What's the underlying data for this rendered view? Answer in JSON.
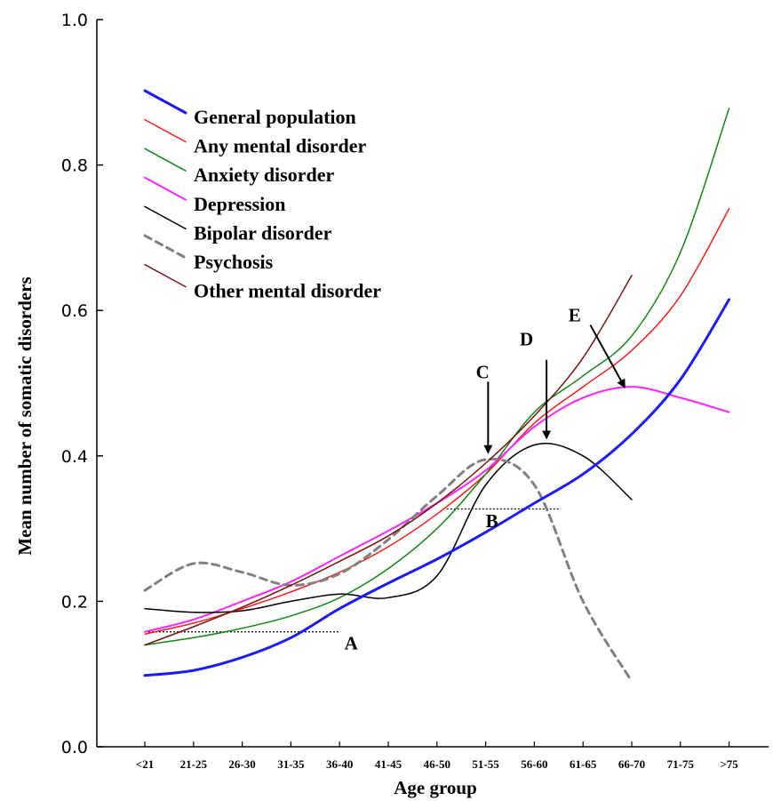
{
  "chart_data": {
    "type": "line",
    "xlabel": "Age group",
    "ylabel": "Mean number of somatic disorders",
    "ylim": [
      0.0,
      1.0
    ],
    "y_ticks": [
      "0.0",
      "0.2",
      "0.4",
      "0.6",
      "0.8",
      "1.0"
    ],
    "categories": [
      "<21",
      "21-25",
      "26-30",
      "31-35",
      "36-40",
      "41-45",
      "46-50",
      "51-55",
      "56-60",
      "61-65",
      "66-70",
      "71-75",
      ">75"
    ],
    "legend_position": "top-left",
    "series": [
      {
        "name": "General population",
        "color": "#1a1aff",
        "dash": "solid",
        "width": 3,
        "values": [
          0.098,
          0.105,
          0.123,
          0.15,
          0.19,
          0.225,
          0.258,
          0.295,
          0.335,
          0.375,
          0.43,
          0.505,
          0.615
        ]
      },
      {
        "name": "Any mental disorder",
        "color": "#ff1a1a",
        "dash": "solid",
        "width": 1.5,
        "values": [
          0.155,
          0.17,
          0.19,
          0.213,
          0.24,
          0.275,
          0.32,
          0.375,
          0.445,
          0.495,
          0.545,
          0.62,
          0.74
        ]
      },
      {
        "name": "Anxiety disorder",
        "color": "#118811",
        "dash": "solid",
        "width": 1.5,
        "values": [
          0.14,
          0.15,
          0.163,
          0.18,
          0.205,
          0.245,
          0.3,
          0.375,
          0.46,
          0.51,
          0.565,
          0.68,
          0.878
        ]
      },
      {
        "name": "Depression",
        "color": "#ff22ff",
        "dash": "solid",
        "width": 2,
        "values": [
          0.158,
          0.175,
          0.2,
          0.227,
          0.262,
          0.297,
          0.335,
          0.38,
          0.44,
          0.48,
          0.495,
          0.48,
          0.46
        ]
      },
      {
        "name": "Bipolar disorder",
        "color": "#000000",
        "dash": "solid",
        "width": 1.5,
        "values": [
          0.19,
          0.185,
          0.187,
          0.2,
          0.21,
          0.205,
          0.235,
          0.36,
          0.415,
          0.4,
          0.34,
          null,
          null
        ]
      },
      {
        "name": "Psychosis",
        "color": "#808080",
        "dash": "8,6",
        "width": 3,
        "values": [
          0.215,
          0.252,
          0.24,
          0.222,
          0.238,
          0.285,
          0.345,
          0.395,
          0.36,
          0.2,
          0.09,
          null,
          null
        ]
      },
      {
        "name": "Other mental disorder",
        "color": "#7a0f0f",
        "dash": "solid",
        "width": 1.5,
        "values": [
          0.14,
          0.165,
          0.192,
          0.222,
          0.255,
          0.29,
          0.335,
          0.39,
          0.455,
          0.535,
          0.648,
          null,
          null
        ]
      }
    ],
    "reference_lines": [
      {
        "x_from": 0,
        "x_to": 4,
        "y": 0.158
      },
      {
        "x_from": 6.2,
        "x_to": 8.5,
        "y": 0.327
      }
    ],
    "annotations": [
      {
        "label": "A",
        "text_x": 4.1,
        "text_y": 0.134,
        "arrow": false
      },
      {
        "label": "B",
        "text_x": 7.0,
        "text_y": 0.302,
        "arrow": false
      },
      {
        "label": "C",
        "text_x": 6.8,
        "text_y": 0.507,
        "arrow": true,
        "arrow_from": [
          7.05,
          0.502
        ],
        "arrow_to": [
          7.05,
          0.405
        ]
      },
      {
        "label": "D",
        "text_x": 7.7,
        "text_y": 0.552,
        "arrow": true,
        "arrow_from": [
          8.25,
          0.532
        ],
        "arrow_to": [
          8.25,
          0.425
        ]
      },
      {
        "label": "E",
        "text_x": 8.7,
        "text_y": 0.585,
        "arrow": true,
        "arrow_from": [
          9.15,
          0.58
        ],
        "arrow_to": [
          9.85,
          0.495
        ]
      }
    ]
  }
}
